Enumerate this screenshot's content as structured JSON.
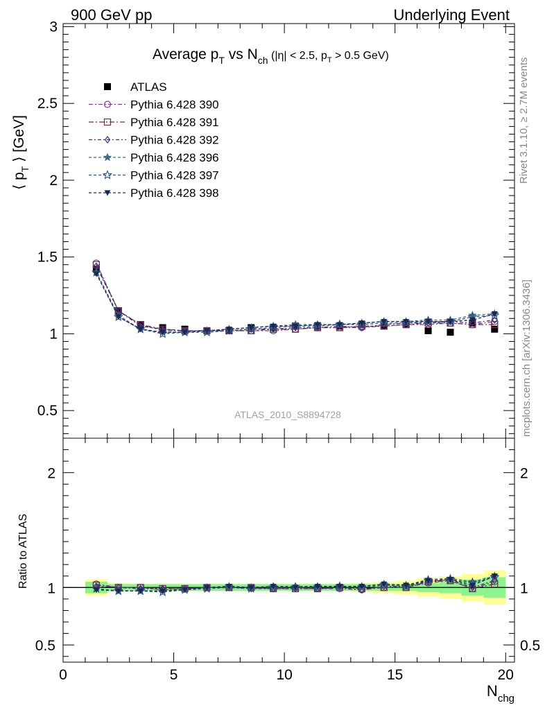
{
  "header": {
    "left": "900 GeV pp",
    "right": "Underlying Event"
  },
  "side": {
    "rivet": "Rivet 3.1.10, ≥ 2.7M events",
    "mcplots": "mcplots.cern.ch [arXiv:1306.3436]"
  },
  "watermark": "ATLAS_2010_S8894728",
  "chart_data": [
    {
      "type": "line",
      "title": {
        "main": "Average p",
        "sub1": "T",
        "mid": " vs N",
        "sub2": "ch",
        "cut": " (|η| < 2.5, p",
        "sub3": "T",
        "tail": " > 0.5 GeV)"
      },
      "ylabel": "⟨ p_T ⟩ [GeV]",
      "xlim": [
        0,
        20.4
      ],
      "ylim": [
        0.32,
        3.02
      ],
      "yticks": [
        0.5,
        1,
        1.5,
        2,
        2.5,
        3
      ],
      "ytick_labels": [
        "0.5",
        "1",
        "1.5",
        "2",
        "2.5",
        "3"
      ],
      "legend_position": "top-left",
      "x": [
        1.5,
        2.5,
        3.5,
        4.5,
        5.5,
        6.5,
        7.5,
        8.5,
        9.5,
        10.5,
        11.5,
        12.5,
        13.5,
        14.5,
        15.5,
        16.5,
        17.5,
        18.5,
        19.5
      ],
      "data": {
        "name": "ATLAS",
        "values": [
          1.42,
          1.15,
          1.06,
          1.04,
          1.03,
          1.02,
          1.02,
          1.04,
          1.04,
          1.05,
          1.05,
          1.05,
          1.06,
          1.05,
          1.06,
          1.02,
          1.01,
          1.07,
          1.03
        ]
      },
      "series": [
        {
          "name": "Pythia 6.428 390",
          "color": "#7b3f86",
          "marker": "circle-open",
          "dash": "6,3,2,3",
          "values": [
            1.46,
            1.15,
            1.06,
            1.02,
            1.02,
            1.02,
            1.02,
            1.02,
            1.02,
            1.03,
            1.04,
            1.04,
            1.04,
            1.05,
            1.06,
            1.06,
            1.07,
            1.06,
            1.08
          ]
        },
        {
          "name": "Pythia 6.428 391",
          "color": "#6e2c4a",
          "marker": "square-open",
          "dash": "7,3,2,3",
          "values": [
            1.45,
            1.15,
            1.06,
            1.03,
            1.02,
            1.02,
            1.02,
            1.02,
            1.03,
            1.03,
            1.04,
            1.04,
            1.05,
            1.05,
            1.06,
            1.07,
            1.07,
            1.06,
            1.06
          ]
        },
        {
          "name": "Pythia 6.428 392",
          "color": "#3b2f7a",
          "marker": "diamond-open",
          "dash": "5,3,2,3",
          "values": [
            1.44,
            1.15,
            1.05,
            1.03,
            1.02,
            1.02,
            1.02,
            1.03,
            1.03,
            1.04,
            1.04,
            1.05,
            1.04,
            1.06,
            1.07,
            1.07,
            1.08,
            1.07,
            1.09
          ]
        },
        {
          "name": "Pythia 6.428 396",
          "color": "#3d6b8a",
          "marker": "star-filled",
          "dash": "4,3",
          "values": [
            1.4,
            1.12,
            1.03,
            1.01,
            1.01,
            1.02,
            1.03,
            1.04,
            1.05,
            1.06,
            1.06,
            1.06,
            1.07,
            1.08,
            1.08,
            1.09,
            1.09,
            1.12,
            1.13
          ]
        },
        {
          "name": "Pythia 6.428 397",
          "color": "#2f5478",
          "marker": "star-open",
          "dash": "4,3",
          "values": [
            1.4,
            1.11,
            1.03,
            1.0,
            1.01,
            1.01,
            1.02,
            1.03,
            1.04,
            1.05,
            1.05,
            1.06,
            1.06,
            1.07,
            1.07,
            1.08,
            1.08,
            1.11,
            1.12
          ]
        },
        {
          "name": "Pythia 6.428 398",
          "color": "#1b2752",
          "marker": "triangle-down-filled",
          "dash": "4,3",
          "values": [
            1.39,
            1.11,
            1.03,
            1.01,
            1.01,
            1.02,
            1.03,
            1.04,
            1.05,
            1.05,
            1.06,
            1.06,
            1.07,
            1.08,
            1.08,
            1.08,
            1.08,
            1.09,
            1.13
          ]
        }
      ]
    },
    {
      "type": "line",
      "ylabel": "Ratio to ATLAS",
      "xlabel": "N_chg",
      "xlim": [
        0,
        20.4
      ],
      "ylim": [
        0.35,
        2.3
      ],
      "xticks": [
        0,
        5,
        10,
        15,
        20
      ],
      "xtick_labels": [
        "0",
        "5",
        "10",
        "15",
        "20"
      ],
      "yticks": [
        0.5,
        1,
        2
      ],
      "ytick_labels": [
        "0.5",
        "1",
        "2"
      ],
      "x_edges": [
        1,
        2,
        3,
        4,
        5,
        6,
        7,
        8,
        9,
        10,
        11,
        12,
        13,
        14,
        15,
        16,
        17,
        18,
        19,
        20
      ],
      "band_stat_half_width": [
        0.05,
        0.03,
        0.03,
        0.03,
        0.03,
        0.03,
        0.03,
        0.03,
        0.03,
        0.03,
        0.03,
        0.03,
        0.03,
        0.03,
        0.03,
        0.04,
        0.05,
        0.07,
        0.09
      ],
      "band_total_half_width": [
        0.07,
        0.04,
        0.03,
        0.03,
        0.03,
        0.03,
        0.03,
        0.03,
        0.03,
        0.03,
        0.03,
        0.03,
        0.04,
        0.05,
        0.06,
        0.08,
        0.1,
        0.12,
        0.15
      ],
      "series_ratios": [
        [
          1.03,
          1.0,
          1.0,
          0.98,
          0.99,
          1.0,
          1.0,
          1.0,
          0.99,
          1.0,
          0.99,
          0.99,
          0.98,
          1.0,
          1.0,
          1.04,
          1.06,
          0.99,
          1.05
        ],
        [
          1.02,
          1.0,
          1.0,
          0.99,
          0.99,
          1.0,
          1.0,
          1.0,
          0.99,
          0.99,
          0.99,
          1.0,
          0.99,
          1.0,
          1.0,
          1.05,
          1.06,
          0.99,
          1.03
        ],
        [
          1.01,
          1.0,
          0.99,
          0.99,
          0.99,
          1.0,
          1.0,
          0.99,
          0.99,
          0.99,
          0.99,
          1.0,
          0.98,
          1.01,
          1.01,
          1.05,
          1.07,
          1.0,
          1.06
        ],
        [
          0.99,
          0.97,
          0.97,
          0.97,
          0.98,
          1.0,
          1.01,
          1.0,
          1.01,
          1.01,
          1.01,
          1.01,
          1.01,
          1.03,
          1.02,
          1.07,
          1.08,
          1.05,
          1.1
        ],
        [
          0.99,
          0.97,
          0.97,
          0.96,
          0.98,
          0.99,
          1.0,
          0.99,
          1.0,
          1.0,
          1.0,
          1.01,
          1.0,
          1.02,
          1.01,
          1.06,
          1.07,
          1.04,
          1.09
        ],
        [
          0.98,
          0.97,
          0.97,
          0.97,
          0.98,
          1.0,
          1.01,
          1.0,
          1.01,
          1.0,
          1.01,
          1.01,
          1.01,
          1.03,
          1.02,
          1.06,
          1.07,
          1.02,
          1.1
        ]
      ]
    }
  ]
}
